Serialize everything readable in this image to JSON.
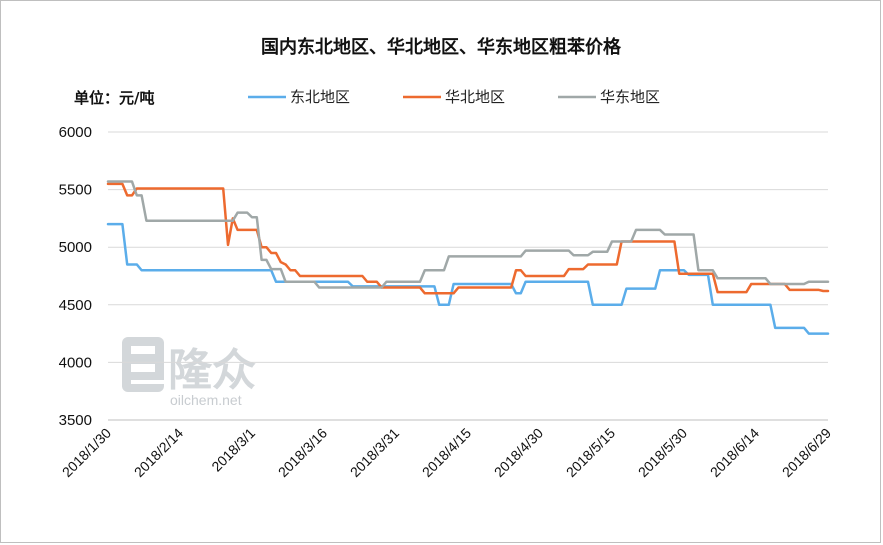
{
  "chart_data": {
    "type": "line",
    "title": "国内东北地区、华北地区、华东地区粗苯价格",
    "unit_label": "单位：元/吨",
    "ylim": [
      3500,
      6000
    ],
    "yticks": [
      "3500",
      "4000",
      "4500",
      "5000",
      "5500",
      "6000"
    ],
    "xlim": [
      "2018-01-30",
      "2018-06-29"
    ],
    "xtick_labels": [
      "2018/1/30",
      "2018/2/14",
      "2018/3/1",
      "2018/3/16",
      "2018/3/31",
      "2018/4/15",
      "2018/4/30",
      "2018/5/15",
      "2018/5/30",
      "2018/6/14",
      "2018/6/29"
    ],
    "xtick_dates": [
      "2018-01-30",
      "2018-02-14",
      "2018-03-01",
      "2018-03-16",
      "2018-03-31",
      "2018-04-15",
      "2018-04-30",
      "2018-05-15",
      "2018-05-30",
      "2018-06-14",
      "2018-06-29"
    ],
    "grid": "horizontal",
    "legend_position": "top",
    "series": [
      {
        "name": "东北地区",
        "color": "#5badea",
        "points": [
          [
            "2018-01-30",
            5200
          ],
          [
            "2018-02-02",
            5200
          ],
          [
            "2018-02-03",
            4850
          ],
          [
            "2018-02-05",
            4850
          ],
          [
            "2018-02-06",
            4800
          ],
          [
            "2018-03-05",
            4800
          ],
          [
            "2018-03-06",
            4700
          ],
          [
            "2018-03-21",
            4700
          ],
          [
            "2018-03-22",
            4660
          ],
          [
            "2018-04-08",
            4660
          ],
          [
            "2018-04-09",
            4500
          ],
          [
            "2018-04-11",
            4500
          ],
          [
            "2018-04-12",
            4680
          ],
          [
            "2018-04-24",
            4680
          ],
          [
            "2018-04-25",
            4600
          ],
          [
            "2018-04-26",
            4600
          ],
          [
            "2018-04-27",
            4700
          ],
          [
            "2018-05-10",
            4700
          ],
          [
            "2018-05-11",
            4500
          ],
          [
            "2018-05-17",
            4500
          ],
          [
            "2018-05-18",
            4640
          ],
          [
            "2018-05-24",
            4640
          ],
          [
            "2018-05-25",
            4800
          ],
          [
            "2018-05-30",
            4800
          ],
          [
            "2018-05-31",
            4760
          ],
          [
            "2018-06-04",
            4760
          ],
          [
            "2018-06-05",
            4500
          ],
          [
            "2018-06-17",
            4500
          ],
          [
            "2018-06-18",
            4300
          ],
          [
            "2018-06-24",
            4300
          ],
          [
            "2018-06-25",
            4250
          ],
          [
            "2018-06-29",
            4250
          ]
        ]
      },
      {
        "name": "华北地区",
        "color": "#ed6a2f",
        "points": [
          [
            "2018-01-30",
            5550
          ],
          [
            "2018-02-02",
            5550
          ],
          [
            "2018-02-03",
            5450
          ],
          [
            "2018-02-04",
            5450
          ],
          [
            "2018-02-05",
            5510
          ],
          [
            "2018-02-23",
            5510
          ],
          [
            "2018-02-24",
            5020
          ],
          [
            "2018-02-25",
            5250
          ],
          [
            "2018-02-26",
            5150
          ],
          [
            "2018-03-02",
            5150
          ],
          [
            "2018-03-03",
            5000
          ],
          [
            "2018-03-04",
            5000
          ],
          [
            "2018-03-05",
            4950
          ],
          [
            "2018-03-06",
            4950
          ],
          [
            "2018-03-07",
            4870
          ],
          [
            "2018-03-08",
            4850
          ],
          [
            "2018-03-09",
            4800
          ],
          [
            "2018-03-10",
            4800
          ],
          [
            "2018-03-11",
            4750
          ],
          [
            "2018-03-24",
            4750
          ],
          [
            "2018-03-25",
            4700
          ],
          [
            "2018-03-27",
            4700
          ],
          [
            "2018-03-28",
            4650
          ],
          [
            "2018-04-05",
            4650
          ],
          [
            "2018-04-06",
            4600
          ],
          [
            "2018-04-12",
            4600
          ],
          [
            "2018-04-13",
            4650
          ],
          [
            "2018-04-24",
            4650
          ],
          [
            "2018-04-25",
            4800
          ],
          [
            "2018-04-26",
            4800
          ],
          [
            "2018-04-27",
            4750
          ],
          [
            "2018-05-05",
            4750
          ],
          [
            "2018-05-06",
            4810
          ],
          [
            "2018-05-09",
            4810
          ],
          [
            "2018-05-10",
            4850
          ],
          [
            "2018-05-16",
            4850
          ],
          [
            "2018-05-17",
            5050
          ],
          [
            "2018-05-28",
            5050
          ],
          [
            "2018-05-29",
            4770
          ],
          [
            "2018-06-05",
            4770
          ],
          [
            "2018-06-06",
            4610
          ],
          [
            "2018-06-12",
            4610
          ],
          [
            "2018-06-13",
            4680
          ],
          [
            "2018-06-20",
            4680
          ],
          [
            "2018-06-21",
            4630
          ],
          [
            "2018-06-27",
            4630
          ],
          [
            "2018-06-28",
            4620
          ],
          [
            "2018-06-29",
            4620
          ]
        ]
      },
      {
        "name": "华东地区",
        "color": "#a0a8a8",
        "points": [
          [
            "2018-01-30",
            5570
          ],
          [
            "2018-02-04",
            5570
          ],
          [
            "2018-02-05",
            5450
          ],
          [
            "2018-02-06",
            5450
          ],
          [
            "2018-02-07",
            5230
          ],
          [
            "2018-02-25",
            5230
          ],
          [
            "2018-02-26",
            5300
          ],
          [
            "2018-02-28",
            5300
          ],
          [
            "2018-03-01",
            5260
          ],
          [
            "2018-03-02",
            5260
          ],
          [
            "2018-03-03",
            4890
          ],
          [
            "2018-03-04",
            4890
          ],
          [
            "2018-03-05",
            4810
          ],
          [
            "2018-03-07",
            4810
          ],
          [
            "2018-03-08",
            4700
          ],
          [
            "2018-03-14",
            4700
          ],
          [
            "2018-03-15",
            4650
          ],
          [
            "2018-03-28",
            4650
          ],
          [
            "2018-03-29",
            4700
          ],
          [
            "2018-04-05",
            4700
          ],
          [
            "2018-04-06",
            4800
          ],
          [
            "2018-04-10",
            4800
          ],
          [
            "2018-04-11",
            4920
          ],
          [
            "2018-04-26",
            4920
          ],
          [
            "2018-04-27",
            4970
          ],
          [
            "2018-05-06",
            4970
          ],
          [
            "2018-05-07",
            4930
          ],
          [
            "2018-05-10",
            4930
          ],
          [
            "2018-05-11",
            4960
          ],
          [
            "2018-05-14",
            4960
          ],
          [
            "2018-05-15",
            5050
          ],
          [
            "2018-05-19",
            5050
          ],
          [
            "2018-05-20",
            5150
          ],
          [
            "2018-05-25",
            5150
          ],
          [
            "2018-05-26",
            5110
          ],
          [
            "2018-06-01",
            5110
          ],
          [
            "2018-06-02",
            4800
          ],
          [
            "2018-06-05",
            4800
          ],
          [
            "2018-06-06",
            4730
          ],
          [
            "2018-06-16",
            4730
          ],
          [
            "2018-06-17",
            4680
          ],
          [
            "2018-06-24",
            4680
          ],
          [
            "2018-06-25",
            4700
          ],
          [
            "2018-06-29",
            4700
          ]
        ]
      }
    ]
  },
  "watermark": {
    "brand": "隆众",
    "url": "oilchem.net"
  }
}
